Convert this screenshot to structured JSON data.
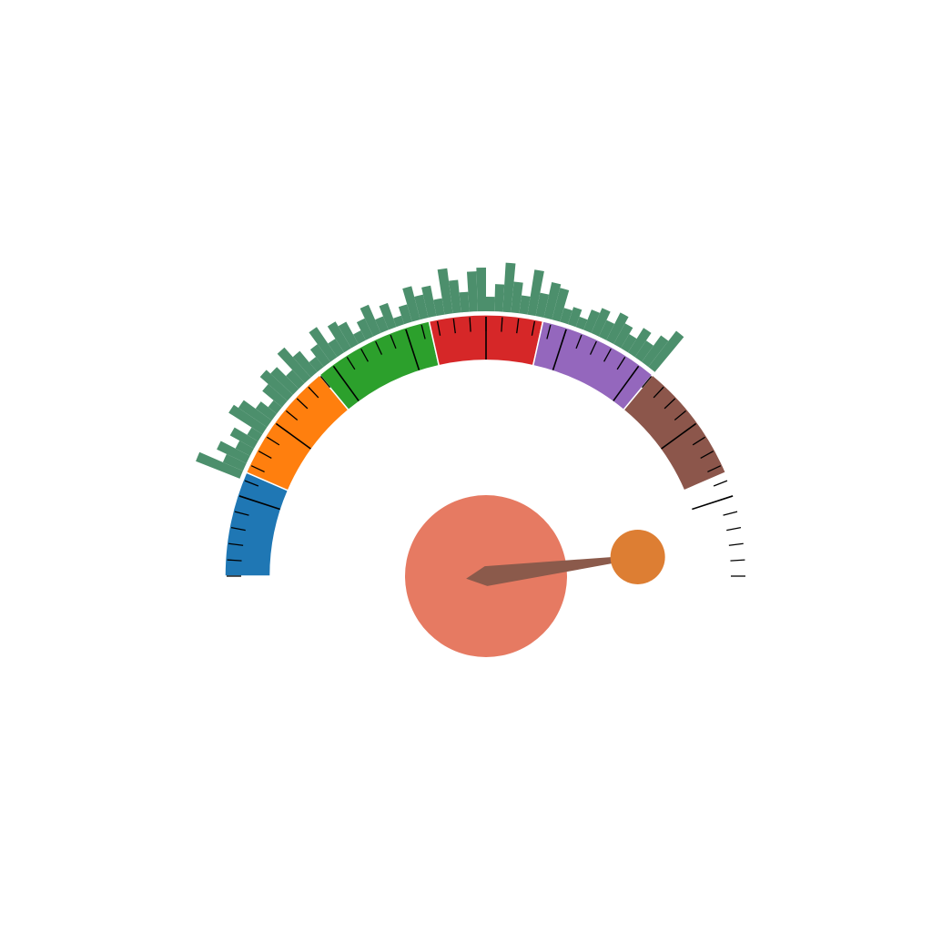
{
  "chart_data": {
    "type": "gauge",
    "lim": [
      0,
      100
    ],
    "bands": [
      {
        "from": 0,
        "to": 13,
        "color": "#1f77b4"
      },
      {
        "from": 13,
        "to": 28,
        "color": "#ff7f0e"
      },
      {
        "from": 28,
        "to": 43,
        "color": "#2ca02c"
      },
      {
        "from": 43,
        "to": 57,
        "color": "#d62728"
      },
      {
        "from": 57,
        "to": 72,
        "color": "#9467bd"
      },
      {
        "from": 72,
        "to": 87,
        "color": "#8c564b"
      }
    ],
    "ticks": [
      0,
      2,
      4,
      6,
      8,
      10,
      12,
      14,
      16,
      18,
      20,
      22,
      24,
      26,
      28,
      30,
      32,
      34,
      36,
      38,
      40,
      42,
      44,
      46,
      48,
      50,
      52,
      54,
      56,
      58,
      60,
      62,
      64,
      66,
      68,
      70,
      72,
      74,
      76,
      78,
      80,
      82,
      84,
      86,
      88,
      90,
      92,
      94,
      96,
      98,
      100
    ],
    "major_ticks": [
      10,
      20,
      30,
      40,
      50,
      60,
      70,
      80,
      90
    ],
    "needle": 96,
    "needle_color": "#8b5a4b",
    "hub_color": "#e67a62",
    "knob_color": "#dd7e33",
    "histogram": {
      "color": "#4c8f6c",
      "ylim": [
        0,
        60
      ],
      "bins": [
        12,
        13,
        14,
        15,
        16,
        17,
        18,
        19,
        20,
        21,
        22,
        23,
        24,
        25,
        26,
        27,
        28,
        29,
        30,
        31,
        32,
        33,
        34,
        35,
        36,
        37,
        38,
        39,
        40,
        41,
        42,
        43,
        44,
        45,
        46,
        47,
        48,
        49,
        50,
        51,
        52,
        53,
        54,
        55,
        56,
        57,
        58,
        59,
        60,
        61,
        62,
        63,
        64,
        65,
        66,
        67,
        68,
        69,
        70,
        71,
        72
      ],
      "values": [
        52,
        24,
        36,
        18,
        30,
        14,
        44,
        38,
        22,
        12,
        28,
        40,
        34,
        20,
        44,
        30,
        14,
        24,
        40,
        18,
        34,
        28,
        12,
        22,
        34,
        16,
        28,
        10,
        20,
        38,
        26,
        34,
        18,
        50,
        36,
        22,
        44,
        48,
        16,
        30,
        54,
        34,
        20,
        50,
        26,
        40,
        36,
        16,
        20,
        12,
        24,
        30,
        20,
        34,
        26,
        18,
        32,
        22,
        36,
        50
      ]
    }
  }
}
